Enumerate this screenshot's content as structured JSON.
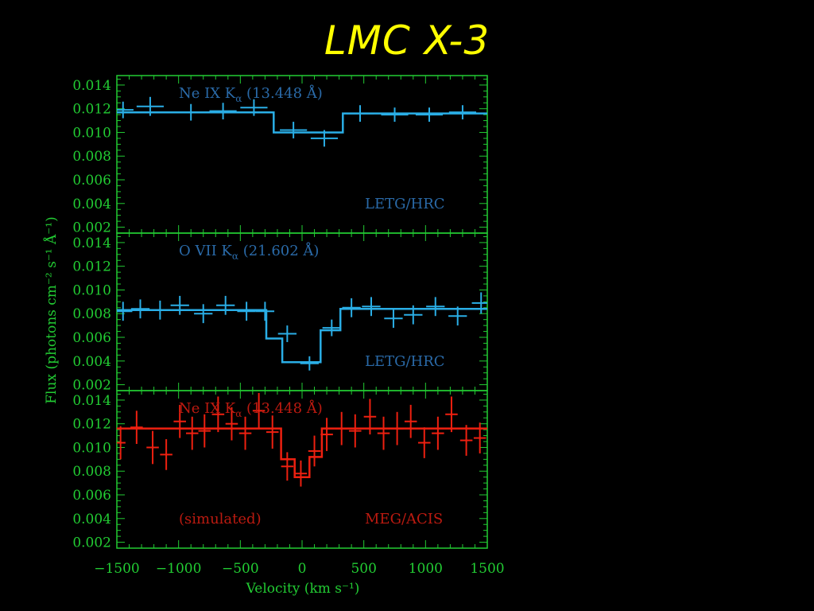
{
  "title": "LMC X-3",
  "colors": {
    "background": "#000000",
    "title": "#ffff00",
    "axis": "#22cc33",
    "blue_data": "#2aaee6",
    "blue_label": "#2a6aa8",
    "red_data": "#ee2010",
    "red_label": "#bb1a10"
  },
  "chart_data": {
    "type": "line",
    "xlabel": "Velocity (km s⁻¹)",
    "ylabel": "Flux (photons cm⁻² s⁻¹ Å⁻¹)",
    "xlim": [
      -1500,
      1500
    ],
    "x_ticks": [
      "−1500",
      "−1000",
      "−500",
      "0",
      "500",
      "1000",
      "1500"
    ],
    "y_ticks": [
      "0.002",
      "0.004",
      "0.006",
      "0.008",
      "0.010",
      "0.012",
      "0.014"
    ],
    "panels": [
      {
        "ylim": [
          0.0015,
          0.0148
        ],
        "line_label": "Ne IX K",
        "line_sub": "α",
        "line_wave": " (13.448 Å)",
        "instrument": "LETG/HRC",
        "note": "",
        "model": [
          [
            -1500,
            0.0117
          ],
          [
            -230,
            0.0117
          ],
          [
            -230,
            0.01
          ],
          [
            330,
            0.01
          ],
          [
            330,
            0.0116
          ],
          [
            1500,
            0.0116
          ]
        ],
        "points": [
          {
            "x": -1450,
            "y": 0.0119,
            "xerr": 85,
            "yerr": 0.0007
          },
          {
            "x": -1230,
            "y": 0.0122,
            "xerr": 110,
            "yerr": 0.0008
          },
          {
            "x": -900,
            "y": 0.0117,
            "xerr": 110,
            "yerr": 0.0007
          },
          {
            "x": -640,
            "y": 0.0118,
            "xerr": 110,
            "yerr": 0.0007
          },
          {
            "x": -390,
            "y": 0.0121,
            "xerr": 110,
            "yerr": 0.0007
          },
          {
            "x": -70,
            "y": 0.0102,
            "xerr": 110,
            "yerr": 0.0007
          },
          {
            "x": 180,
            "y": 0.0095,
            "xerr": 110,
            "yerr": 0.0007
          },
          {
            "x": 470,
            "y": 0.0116,
            "xerr": 110,
            "yerr": 0.0007
          },
          {
            "x": 750,
            "y": 0.0115,
            "xerr": 110,
            "yerr": 0.0006
          },
          {
            "x": 1030,
            "y": 0.0115,
            "xerr": 110,
            "yerr": 0.0006
          },
          {
            "x": 1300,
            "y": 0.0117,
            "xerr": 110,
            "yerr": 0.0006
          }
        ]
      },
      {
        "ylim": [
          0.0015,
          0.0148
        ],
        "line_label": "O VII K",
        "line_sub": "α",
        "line_wave": " (21.602 Å)",
        "instrument": "LETG/HRC",
        "note": "",
        "model": [
          [
            -1500,
            0.0083
          ],
          [
            -290,
            0.0083
          ],
          [
            -290,
            0.0059
          ],
          [
            -160,
            0.0059
          ],
          [
            -160,
            0.0039
          ],
          [
            150,
            0.0039
          ],
          [
            150,
            0.0066
          ],
          [
            310,
            0.0066
          ],
          [
            310,
            0.0084
          ],
          [
            1500,
            0.0084
          ]
        ],
        "points": [
          {
            "x": -1450,
            "y": 0.0082,
            "xerr": 75,
            "yerr": 0.0008
          },
          {
            "x": -1310,
            "y": 0.0084,
            "xerr": 75,
            "yerr": 0.0008
          },
          {
            "x": -1150,
            "y": 0.0083,
            "xerr": 75,
            "yerr": 0.0008
          },
          {
            "x": -990,
            "y": 0.0087,
            "xerr": 75,
            "yerr": 0.0008
          },
          {
            "x": -800,
            "y": 0.008,
            "xerr": 75,
            "yerr": 0.0008
          },
          {
            "x": -620,
            "y": 0.0087,
            "xerr": 75,
            "yerr": 0.0008
          },
          {
            "x": -450,
            "y": 0.0082,
            "xerr": 75,
            "yerr": 0.0008
          },
          {
            "x": -300,
            "y": 0.0082,
            "xerr": 75,
            "yerr": 0.0008
          },
          {
            "x": -120,
            "y": 0.0063,
            "xerr": 75,
            "yerr": 0.0007
          },
          {
            "x": 60,
            "y": 0.0038,
            "xerr": 75,
            "yerr": 0.0006
          },
          {
            "x": 240,
            "y": 0.0068,
            "xerr": 75,
            "yerr": 0.0007
          },
          {
            "x": 400,
            "y": 0.0085,
            "xerr": 75,
            "yerr": 0.0008
          },
          {
            "x": 560,
            "y": 0.0086,
            "xerr": 75,
            "yerr": 0.0008
          },
          {
            "x": 740,
            "y": 0.0076,
            "xerr": 75,
            "yerr": 0.0008
          },
          {
            "x": 900,
            "y": 0.0079,
            "xerr": 75,
            "yerr": 0.0008
          },
          {
            "x": 1080,
            "y": 0.0086,
            "xerr": 75,
            "yerr": 0.0008
          },
          {
            "x": 1260,
            "y": 0.0078,
            "xerr": 75,
            "yerr": 0.0008
          },
          {
            "x": 1450,
            "y": 0.0089,
            "xerr": 75,
            "yerr": 0.0009
          }
        ]
      },
      {
        "ylim": [
          0.0015,
          0.0148
        ],
        "line_label": "Ne IX K",
        "line_sub": "α",
        "line_wave": " (13.448 Å)",
        "instrument": "MEG/ACIS",
        "note": "(simulated)",
        "model": [
          [
            -1500,
            0.0116
          ],
          [
            -170,
            0.0116
          ],
          [
            -170,
            0.009
          ],
          [
            -60,
            0.009
          ],
          [
            -60,
            0.0075
          ],
          [
            60,
            0.0075
          ],
          [
            60,
            0.0092
          ],
          [
            160,
            0.0092
          ],
          [
            160,
            0.0116
          ],
          [
            1500,
            0.0116
          ]
        ],
        "points": [
          {
            "x": -1470,
            "y": 0.0104,
            "xerr": 40,
            "yerr": 0.0014
          },
          {
            "x": -1340,
            "y": 0.0117,
            "xerr": 50,
            "yerr": 0.0014
          },
          {
            "x": -1210,
            "y": 0.01,
            "xerr": 50,
            "yerr": 0.0014
          },
          {
            "x": -1100,
            "y": 0.0094,
            "xerr": 50,
            "yerr": 0.0013
          },
          {
            "x": -990,
            "y": 0.0122,
            "xerr": 50,
            "yerr": 0.0014
          },
          {
            "x": -890,
            "y": 0.0112,
            "xerr": 50,
            "yerr": 0.0014
          },
          {
            "x": -790,
            "y": 0.0114,
            "xerr": 50,
            "yerr": 0.0014
          },
          {
            "x": -680,
            "y": 0.0128,
            "xerr": 50,
            "yerr": 0.0015
          },
          {
            "x": -570,
            "y": 0.012,
            "xerr": 50,
            "yerr": 0.0014
          },
          {
            "x": -460,
            "y": 0.0112,
            "xerr": 50,
            "yerr": 0.0014
          },
          {
            "x": -350,
            "y": 0.0131,
            "xerr": 50,
            "yerr": 0.0015
          },
          {
            "x": -240,
            "y": 0.0113,
            "xerr": 50,
            "yerr": 0.0014
          },
          {
            "x": -120,
            "y": 0.0084,
            "xerr": 50,
            "yerr": 0.0012
          },
          {
            "x": -10,
            "y": 0.0078,
            "xerr": 50,
            "yerr": 0.0011
          },
          {
            "x": 100,
            "y": 0.0097,
            "xerr": 50,
            "yerr": 0.0013
          },
          {
            "x": 200,
            "y": 0.0111,
            "xerr": 50,
            "yerr": 0.0014
          },
          {
            "x": 320,
            "y": 0.0116,
            "xerr": 50,
            "yerr": 0.0014
          },
          {
            "x": 430,
            "y": 0.0114,
            "xerr": 50,
            "yerr": 0.0014
          },
          {
            "x": 550,
            "y": 0.0126,
            "xerr": 50,
            "yerr": 0.0015
          },
          {
            "x": 660,
            "y": 0.0112,
            "xerr": 50,
            "yerr": 0.0014
          },
          {
            "x": 770,
            "y": 0.0116,
            "xerr": 50,
            "yerr": 0.0014
          },
          {
            "x": 880,
            "y": 0.0122,
            "xerr": 50,
            "yerr": 0.0014
          },
          {
            "x": 990,
            "y": 0.0104,
            "xerr": 50,
            "yerr": 0.0013
          },
          {
            "x": 1100,
            "y": 0.0112,
            "xerr": 50,
            "yerr": 0.0014
          },
          {
            "x": 1210,
            "y": 0.0128,
            "xerr": 50,
            "yerr": 0.0015
          },
          {
            "x": 1330,
            "y": 0.0106,
            "xerr": 50,
            "yerr": 0.0013
          },
          {
            "x": 1440,
            "y": 0.0108,
            "xerr": 50,
            "yerr": 0.0013
          }
        ]
      }
    ]
  }
}
